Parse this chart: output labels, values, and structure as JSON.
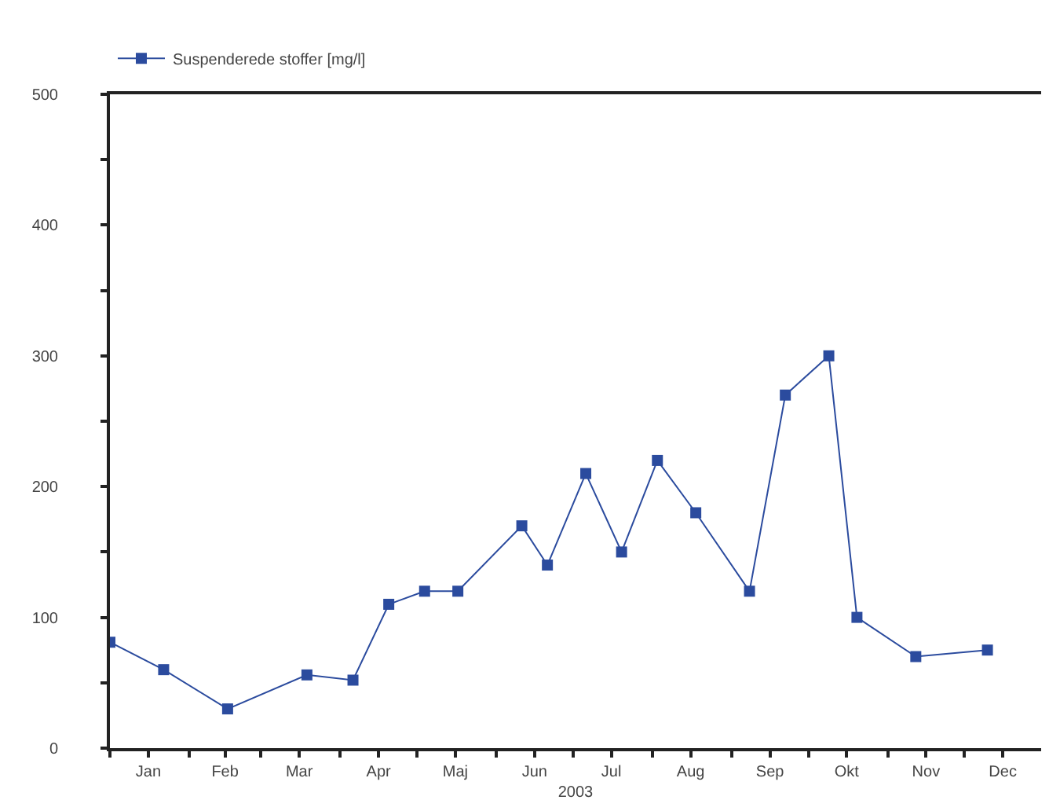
{
  "chart_data": {
    "type": "line",
    "xlabel": "2003",
    "legend": "top left",
    "marker": "square",
    "line_style": "solid",
    "grid": false,
    "x": [
      "2003-01-01",
      "2003-01-22",
      "2003-02-16",
      "2003-03-19",
      "2003-04-06",
      "2003-04-20",
      "2003-05-04",
      "2003-05-17",
      "2003-06-11",
      "2003-06-21",
      "2003-07-06",
      "2003-07-20",
      "2003-08-03",
      "2003-08-18",
      "2003-09-08",
      "2003-09-22",
      "2003-10-09",
      "2003-10-20",
      "2003-11-12",
      "2003-12-10"
    ],
    "series": [
      {
        "name": "Suspenderede stoffer [mg/l]",
        "color": "#2b4b9e",
        "values": [
          81,
          60,
          30,
          56,
          52,
          110,
          120,
          120,
          170,
          140,
          210,
          150,
          220,
          180,
          120,
          270,
          300,
          100,
          70,
          75
        ]
      }
    ],
    "xlim": [
      "2003-01-01",
      "2003-12-31"
    ],
    "xticks": [
      {
        "value": "2003-01-01",
        "label": null
      },
      {
        "value": "2003-01-16",
        "label": "Jan"
      },
      {
        "value": "2003-02-01",
        "label": null
      },
      {
        "value": "2003-02-15",
        "label": "Feb"
      },
      {
        "value": "2003-03-01",
        "label": null
      },
      {
        "value": "2003-03-16",
        "label": "Mar"
      },
      {
        "value": "2003-04-01",
        "label": null
      },
      {
        "value": "2003-04-16",
        "label": "Apr"
      },
      {
        "value": "2003-05-01",
        "label": null
      },
      {
        "value": "2003-05-16",
        "label": "Maj"
      },
      {
        "value": "2003-06-01",
        "label": null
      },
      {
        "value": "2003-06-16",
        "label": "Jun"
      },
      {
        "value": "2003-07-01",
        "label": null
      },
      {
        "value": "2003-07-16",
        "label": "Jul"
      },
      {
        "value": "2003-08-01",
        "label": null
      },
      {
        "value": "2003-08-16",
        "label": "Aug"
      },
      {
        "value": "2003-09-01",
        "label": null
      },
      {
        "value": "2003-09-16",
        "label": "Sep"
      },
      {
        "value": "2003-10-01",
        "label": null
      },
      {
        "value": "2003-10-16",
        "label": "Okt"
      },
      {
        "value": "2003-11-01",
        "label": null
      },
      {
        "value": "2003-11-16",
        "label": "Nov"
      },
      {
        "value": "2003-12-01",
        "label": null
      },
      {
        "value": "2003-12-16",
        "label": "Dec"
      }
    ],
    "ylim": [
      0,
      500
    ],
    "yticks": [
      0,
      {
        "value": 50,
        "label": null
      },
      100,
      {
        "value": 150,
        "label": null
      },
      200,
      {
        "value": 250,
        "label": null
      },
      300,
      {
        "value": 350,
        "label": null
      },
      400,
      {
        "value": 450,
        "label": null
      },
      500
    ]
  }
}
